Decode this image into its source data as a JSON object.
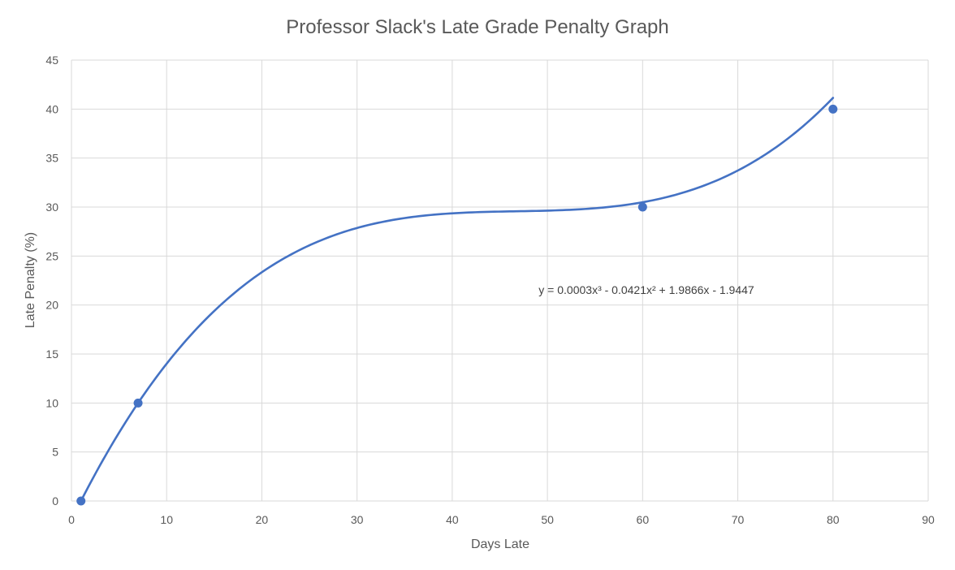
{
  "chart_data": {
    "type": "scatter",
    "title": "Professor Slack's Late Grade Penalty Graph",
    "xlabel": "Days Late",
    "ylabel": "Late Penalty (%)",
    "xlim": [
      0,
      90
    ],
    "ylim": [
      0,
      45
    ],
    "x_ticks": [
      0,
      10,
      20,
      30,
      40,
      50,
      60,
      70,
      80,
      90
    ],
    "y_ticks": [
      0,
      5,
      10,
      15,
      20,
      25,
      30,
      35,
      40,
      45
    ],
    "grid": true,
    "legend": "none",
    "series": [
      {
        "x": [
          1,
          7,
          60,
          80
        ],
        "y": [
          0,
          10,
          30,
          40
        ],
        "color": "#4472c4"
      }
    ],
    "trendline": {
      "kind": "polynomial",
      "order": 3,
      "coefficients": [
        0.0003,
        -0.0421,
        1.9866,
        -1.9447
      ],
      "domain": [
        1,
        80
      ],
      "color": "#4472c4"
    },
    "annotation": "y = 0.0003x³ - 0.0421x² + 1.9866x - 1.9447"
  }
}
